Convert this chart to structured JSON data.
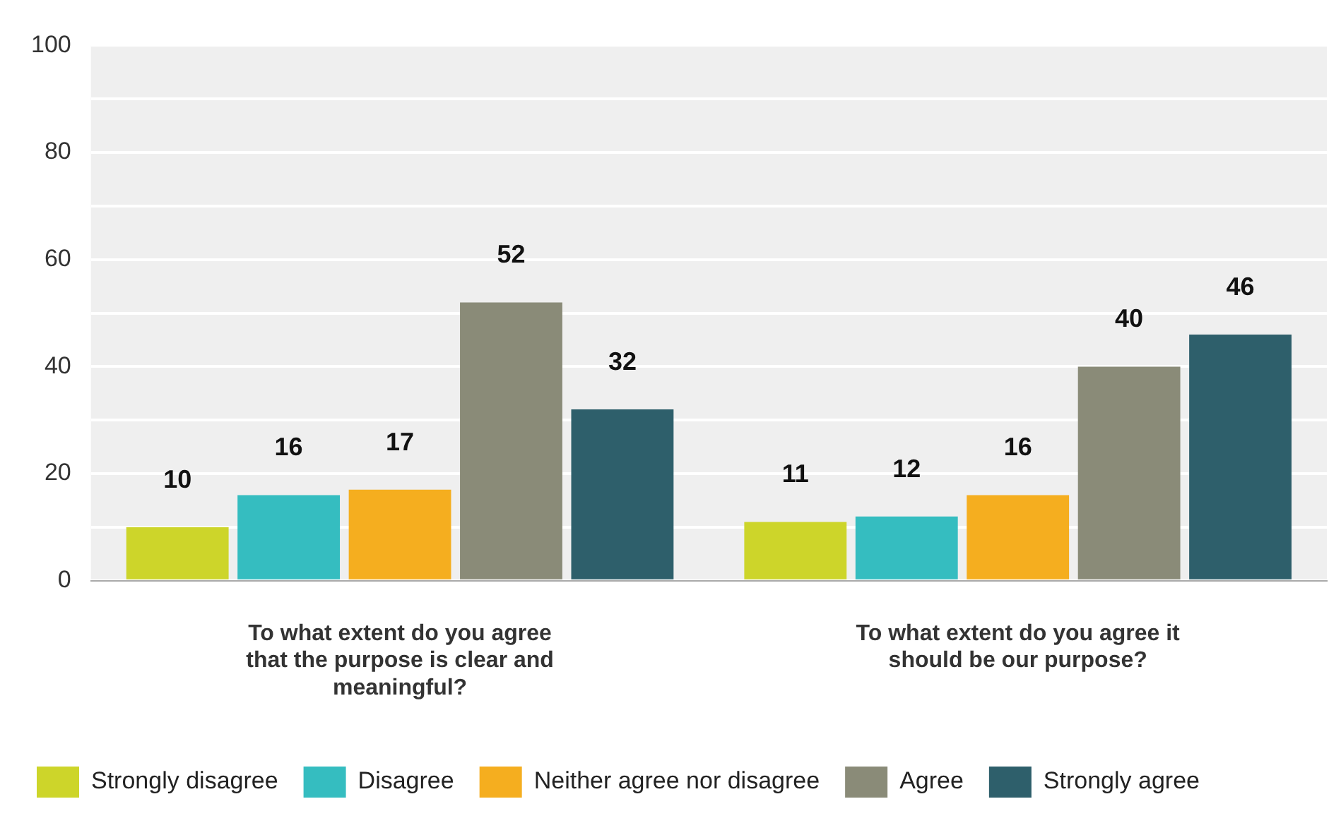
{
  "chart_data": {
    "type": "bar",
    "categories": [
      "To what extent do you agree that the purpose is clear and meaningful?",
      "To what extent do you agree it should be our purpose?"
    ],
    "series": [
      {
        "name": "Strongly disagree",
        "color": "#cdd52a",
        "values": [
          10,
          11
        ]
      },
      {
        "name": "Disagree",
        "color": "#35bdc0",
        "values": [
          16,
          12
        ]
      },
      {
        "name": "Neither agree nor disagree",
        "color": "#f5ae1f",
        "values": [
          17,
          16
        ]
      },
      {
        "name": "Agree",
        "color": "#8a8b78",
        "values": [
          52,
          40
        ]
      },
      {
        "name": "Strongly agree",
        "color": "#2e5f6b",
        "values": [
          32,
          46
        ]
      }
    ],
    "ylim": [
      0,
      100
    ],
    "yticks": [
      0,
      {
        "value": 10,
        "label": null
      },
      20,
      {
        "value": 30,
        "label": null
      },
      40,
      {
        "value": 50,
        "label": null
      },
      60,
      {
        "value": 70,
        "label": null
      },
      80,
      {
        "value": 90,
        "label": null
      },
      100
    ],
    "grid": "y",
    "legend": "bottom left",
    "data_labels": true
  }
}
